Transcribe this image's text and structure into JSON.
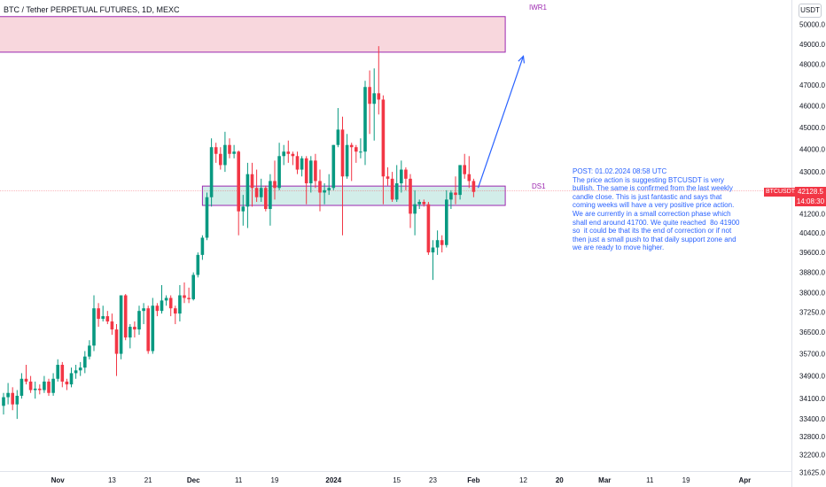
{
  "header": {
    "title": "BTC / Tether PERPETUAL FUTURES, 1D, MEXC",
    "currency_label": "USDT"
  },
  "price_badge": {
    "symbol": "BTCUSDT.P",
    "price": "42128.5",
    "countdown": "14:08:30"
  },
  "zones": {
    "weekly_label": "IWR1",
    "daily_label": "DS1",
    "weekly_price_range": [
      48600,
      50400
    ],
    "daily_price_range": [
      41550,
      42380
    ],
    "daily_dates": [
      "2023-12-03",
      "2024-02-08"
    ],
    "weekly_dates": [
      "2023-10-20",
      "2024-02-08"
    ],
    "line_price": 42180
  },
  "arrow": {
    "from": {
      "date": "2024-02-02",
      "price": 42300
    },
    "to": {
      "date": "2024-02-12",
      "price": 48400
    }
  },
  "note": {
    "text": "POST: 01.02.2024 08:58 UTC\nThe price action is suggesting BTCUSDT is very bullish. The same is confirmed from the last weekly candle close. This is just fantastic and says that coming weeks will have a very positive price action. We are currently in a small correction phase which shall end around 41700. We quite reached  8o 41900  so  it could be that its the end of correction or if not then just a small push to that daily support zone and we are ready to move higher."
  },
  "colors": {
    "up": "#089981",
    "down": "#f23645",
    "zone_weekly_fill": "#f8d7dd",
    "zone_daily_fill": "#d2ede9",
    "zone_border": "#9c27b0",
    "arrow": "#2962ff",
    "note_text": "#2962ff"
  },
  "chart_data": {
    "type": "candlestick",
    "title": "BTC / Tether PERPETUAL FUTURES, 1D, MEXC",
    "y_scale": "log",
    "ylim": [
      31500,
      51000
    ],
    "y_ticks": [
      "31625.0",
      "32200.0",
      "32800.0",
      "33400.0",
      "34100.0",
      "34900.0",
      "35700.0",
      "36500.0",
      "37250.0",
      "38000.0",
      "38800.0",
      "39600.0",
      "40400.0",
      "41200.0",
      "42000.0",
      "43000.0",
      "44000.0",
      "45000.0",
      "46000.0",
      "47000.0",
      "48000.0",
      "49000.0",
      "50000.0"
    ],
    "x_ticks": [
      {
        "date": "2023-11-01",
        "label": "Nov"
      },
      {
        "date": "2023-11-13",
        "label": "13"
      },
      {
        "date": "2023-11-21",
        "label": "21"
      },
      {
        "date": "2023-12-01",
        "label": "Dec"
      },
      {
        "date": "2023-12-11",
        "label": "11"
      },
      {
        "date": "2023-12-19",
        "label": "19"
      },
      {
        "date": "2024-01-01",
        "label": "2024"
      },
      {
        "date": "2024-01-15",
        "label": "15"
      },
      {
        "date": "2024-01-23",
        "label": "23"
      },
      {
        "date": "2024-02-01",
        "label": "Feb"
      },
      {
        "date": "2024-02-12",
        "label": "12"
      },
      {
        "date": "2024-02-20",
        "label": "20"
      },
      {
        "date": "2024-03-01",
        "label": "Mar"
      },
      {
        "date": "2024-03-11",
        "label": "11"
      },
      {
        "date": "2024-03-19",
        "label": "19"
      },
      {
        "date": "2024-04-01",
        "label": "Apr"
      }
    ],
    "columns": [
      "date",
      "open",
      "high",
      "low",
      "close"
    ],
    "candles": [
      [
        "2023-10-20",
        33850,
        34300,
        33550,
        34150
      ],
      [
        "2023-10-21",
        34150,
        34650,
        33900,
        34300
      ],
      [
        "2023-10-22",
        34300,
        34500,
        33700,
        33900
      ],
      [
        "2023-10-23",
        33900,
        34400,
        33400,
        34200
      ],
      [
        "2023-10-24",
        34200,
        35000,
        34100,
        34800
      ],
      [
        "2023-10-25",
        34800,
        35300,
        34600,
        34700
      ],
      [
        "2023-10-26",
        34700,
        34900,
        34300,
        34400
      ],
      [
        "2023-10-27",
        34400,
        34700,
        34100,
        34450
      ],
      [
        "2023-10-28",
        34450,
        34600,
        34250,
        34400
      ],
      [
        "2023-10-29",
        34400,
        34900,
        34300,
        34700
      ],
      [
        "2023-10-30",
        34700,
        34800,
        34200,
        34300
      ],
      [
        "2023-10-31",
        34300,
        35000,
        34200,
        34800
      ],
      [
        "2023-11-01",
        34800,
        35500,
        34700,
        35300
      ],
      [
        "2023-11-02",
        35300,
        35400,
        34500,
        34700
      ],
      [
        "2023-11-03",
        34700,
        34800,
        34400,
        34600
      ],
      [
        "2023-11-04",
        34600,
        35200,
        34500,
        35000
      ],
      [
        "2023-11-05",
        35000,
        35300,
        34800,
        35100
      ],
      [
        "2023-11-06",
        35100,
        35400,
        34900,
        35200
      ],
      [
        "2023-11-07",
        35200,
        35800,
        35000,
        35600
      ],
      [
        "2023-11-08",
        35600,
        36200,
        35500,
        36000
      ],
      [
        "2023-11-09",
        36000,
        37900,
        35800,
        37400
      ],
      [
        "2023-11-10",
        37400,
        37600,
        36700,
        37000
      ],
      [
        "2023-11-11",
        37000,
        37500,
        36900,
        37100
      ],
      [
        "2023-11-12",
        37100,
        37300,
        36800,
        36900
      ],
      [
        "2023-11-13",
        36900,
        37200,
        36400,
        36600
      ],
      [
        "2023-11-14",
        36600,
        36800,
        34900,
        35700
      ],
      [
        "2023-11-15",
        35700,
        37900,
        35500,
        37900
      ],
      [
        "2023-11-16",
        37900,
        37950,
        36200,
        36300
      ],
      [
        "2023-11-17",
        36300,
        36800,
        35900,
        36700
      ],
      [
        "2023-11-18",
        36700,
        36900,
        36300,
        36600
      ],
      [
        "2023-11-19",
        36600,
        37500,
        36400,
        37300
      ],
      [
        "2023-11-20",
        37300,
        37600,
        36800,
        37400
      ],
      [
        "2023-11-21",
        37400,
        37500,
        35700,
        35800
      ],
      [
        "2023-11-22",
        35800,
        37800,
        35700,
        37500
      ],
      [
        "2023-11-23",
        37500,
        37600,
        37100,
        37300
      ],
      [
        "2023-11-24",
        37300,
        38300,
        37200,
        37700
      ],
      [
        "2023-11-25",
        37700,
        37900,
        37500,
        37800
      ],
      [
        "2023-11-26",
        37800,
        37900,
        37100,
        37400
      ],
      [
        "2023-11-27",
        37400,
        37500,
        36800,
        37200
      ],
      [
        "2023-11-28",
        37200,
        38300,
        36900,
        37900
      ],
      [
        "2023-11-29",
        37900,
        38400,
        37600,
        37800
      ],
      [
        "2023-11-30",
        37800,
        38200,
        37600,
        37750
      ],
      [
        "2023-12-01",
        37750,
        38800,
        37700,
        38700
      ],
      [
        "2023-12-02",
        38700,
        39600,
        38600,
        39500
      ],
      [
        "2023-12-03",
        39500,
        40300,
        39300,
        40200
      ],
      [
        "2023-12-04",
        40200,
        42100,
        40100,
        41900
      ],
      [
        "2023-12-05",
        41900,
        44500,
        41500,
        44100
      ],
      [
        "2023-12-06",
        44100,
        44300,
        43400,
        43800
      ],
      [
        "2023-12-07",
        43800,
        44100,
        43100,
        43300
      ],
      [
        "2023-12-08",
        43300,
        44800,
        43000,
        44200
      ],
      [
        "2023-12-09",
        44200,
        44500,
        43600,
        43800
      ],
      [
        "2023-12-10",
        43800,
        44200,
        43600,
        43900
      ],
      [
        "2023-12-11",
        43900,
        43950,
        40300,
        41300
      ],
      [
        "2023-12-12",
        41300,
        42000,
        40700,
        41500
      ],
      [
        "2023-12-13",
        41500,
        43400,
        40600,
        42900
      ],
      [
        "2023-12-14",
        42900,
        43400,
        41500,
        42300
      ],
      [
        "2023-12-15",
        42300,
        43100,
        41700,
        41900
      ],
      [
        "2023-12-16",
        41900,
        42700,
        41700,
        42300
      ],
      [
        "2023-12-17",
        42300,
        42400,
        41300,
        41400
      ],
      [
        "2023-12-18",
        41400,
        42900,
        40700,
        42600
      ],
      [
        "2023-12-19",
        42600,
        43500,
        41800,
        42300
      ],
      [
        "2023-12-20",
        42300,
        44300,
        42200,
        43700
      ],
      [
        "2023-12-21",
        43700,
        44200,
        43300,
        43900
      ],
      [
        "2023-12-22",
        43900,
        44400,
        43400,
        43800
      ],
      [
        "2023-12-23",
        43800,
        43900,
        43300,
        43700
      ],
      [
        "2023-12-24",
        43700,
        43900,
        42900,
        43100
      ],
      [
        "2023-12-25",
        43100,
        43700,
        42800,
        43600
      ],
      [
        "2023-12-26",
        43600,
        43700,
        41600,
        42500
      ],
      [
        "2023-12-27",
        42500,
        43700,
        42100,
        43500
      ],
      [
        "2023-12-28",
        43500,
        43800,
        42300,
        42600
      ],
      [
        "2023-12-29",
        42600,
        43100,
        41300,
        42100
      ],
      [
        "2023-12-30",
        42100,
        42500,
        41600,
        42200
      ],
      [
        "2023-12-31",
        42200,
        42900,
        42000,
        42300
      ],
      [
        "2024-01-01",
        42300,
        44200,
        42200,
        44200
      ],
      [
        "2024-01-02",
        44200,
        45900,
        44100,
        44900
      ],
      [
        "2024-01-03",
        44900,
        45500,
        40300,
        42800
      ],
      [
        "2024-01-04",
        42800,
        44700,
        42700,
        44200
      ],
      [
        "2024-01-05",
        44200,
        44300,
        42600,
        44100
      ],
      [
        "2024-01-06",
        44100,
        44200,
        43400,
        43900
      ],
      [
        "2024-01-07",
        43900,
        44500,
        43600,
        43900
      ],
      [
        "2024-01-08",
        43900,
        47200,
        43300,
        46900
      ],
      [
        "2024-01-09",
        46900,
        47700,
        44700,
        46100
      ],
      [
        "2024-01-10",
        46100,
        47800,
        44400,
        46600
      ],
      [
        "2024-01-11",
        46600,
        48900,
        45600,
        46300
      ],
      [
        "2024-01-12",
        46300,
        46500,
        41600,
        42800
      ],
      [
        "2024-01-13",
        42800,
        43200,
        42400,
        42700
      ],
      [
        "2024-01-14",
        42700,
        43000,
        41700,
        41800
      ],
      [
        "2024-01-15",
        41800,
        43300,
        41700,
        42500
      ],
      [
        "2024-01-16",
        42500,
        43500,
        42100,
        43100
      ],
      [
        "2024-01-17",
        43100,
        43200,
        42200,
        42700
      ],
      [
        "2024-01-18",
        42700,
        42900,
        40600,
        41200
      ],
      [
        "2024-01-19",
        41200,
        42200,
        40300,
        41600
      ],
      [
        "2024-01-20",
        41600,
        41800,
        41400,
        41700
      ],
      [
        "2024-01-21",
        41700,
        41800,
        41500,
        41600
      ],
      [
        "2024-01-22",
        41600,
        41700,
        39500,
        39600
      ],
      [
        "2024-01-23",
        39600,
        40100,
        38500,
        39800
      ],
      [
        "2024-01-24",
        39800,
        40500,
        39500,
        40100
      ],
      [
        "2024-01-25",
        40100,
        40300,
        39600,
        39900
      ],
      [
        "2024-01-26",
        39900,
        42200,
        39800,
        41800
      ],
      [
        "2024-01-27",
        41800,
        42200,
        41400,
        42100
      ],
      [
        "2024-01-28",
        42100,
        42800,
        41600,
        42000
      ],
      [
        "2024-01-29",
        42000,
        43300,
        41800,
        43300
      ],
      [
        "2024-01-30",
        43300,
        43800,
        42700,
        42900
      ],
      [
        "2024-01-31",
        42900,
        43700,
        42300,
        42600
      ],
      [
        "2024-02-01",
        42600,
        42700,
        41900,
        42128.5
      ]
    ]
  }
}
